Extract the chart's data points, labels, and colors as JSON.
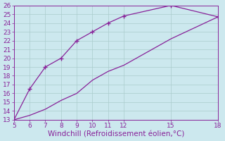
{
  "upper_x": [
    5,
    6,
    7,
    8,
    9,
    10,
    11,
    12,
    15,
    18
  ],
  "upper_y": [
    13,
    16.5,
    19,
    20,
    22,
    23,
    24,
    24.8,
    26,
    24.7
  ],
  "lower_x": [
    5,
    6,
    7,
    8,
    9,
    10,
    11,
    12,
    15,
    18
  ],
  "lower_y": [
    13,
    13.5,
    14.2,
    15.2,
    16.0,
    17.5,
    18.5,
    19.2,
    22.2,
    24.7
  ],
  "line_color": "#882299",
  "marker": "P",
  "markersize": 3,
  "xlim": [
    5,
    18
  ],
  "ylim": [
    13,
    26
  ],
  "xticks": [
    5,
    6,
    7,
    8,
    9,
    10,
    11,
    12,
    15,
    18
  ],
  "yticks": [
    13,
    14,
    15,
    16,
    17,
    18,
    19,
    20,
    21,
    22,
    23,
    24,
    25,
    26
  ],
  "xlabel": "Windchill (Refroidissement éolien,°C)",
  "background_color": "#cce8ee",
  "grid_color": "#aacccc",
  "tick_fontsize": 6.5,
  "xlabel_fontsize": 7.5
}
